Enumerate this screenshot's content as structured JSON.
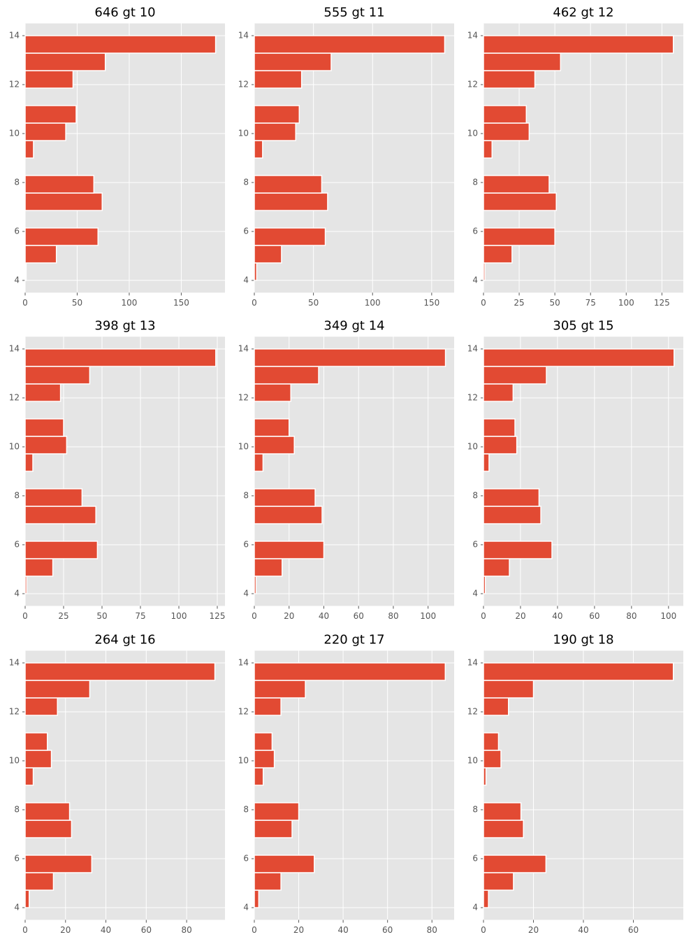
{
  "chart_data": [
    {
      "type": "histogram",
      "title": "646 gt 10",
      "orientation": "horizontal",
      "color": "#e24a33",
      "grid": true,
      "bins": [
        4,
        4.714,
        5.429,
        6.143,
        6.857,
        7.571,
        8.286,
        9,
        9.714,
        10.429,
        11.143,
        11.857,
        12.571,
        13.286,
        14
      ],
      "values": [
        1,
        30,
        70,
        0,
        74,
        66,
        0,
        8,
        39,
        49,
        0,
        46,
        77,
        183
      ],
      "xlim": [
        0,
        192
      ],
      "xticks": [
        0,
        50,
        100,
        150
      ],
      "ylim": [
        3.5,
        14.5
      ],
      "yticks": [
        4,
        6,
        8,
        10,
        12,
        14
      ]
    },
    {
      "type": "histogram",
      "title": "555 gt 11",
      "orientation": "horizontal",
      "color": "#e24a33",
      "grid": true,
      "bins": [
        4,
        4.714,
        5.429,
        6.143,
        6.857,
        7.571,
        8.286,
        9,
        9.714,
        10.429,
        11.143,
        11.857,
        12.571,
        13.286,
        14
      ],
      "values": [
        2,
        23,
        60,
        0,
        62,
        57,
        0,
        7,
        35,
        38,
        0,
        40,
        65,
        161
      ],
      "xlim": [
        0,
        169
      ],
      "xticks": [
        0,
        50,
        100,
        150
      ],
      "ylim": [
        3.5,
        14.5
      ],
      "yticks": [
        4,
        6,
        8,
        10,
        12,
        14
      ]
    },
    {
      "type": "histogram",
      "title": "462 gt 12",
      "orientation": "horizontal",
      "color": "#e24a33",
      "grid": true,
      "bins": [
        4,
        4.714,
        5.429,
        6.143,
        6.857,
        7.571,
        8.286,
        9,
        9.714,
        10.429,
        11.143,
        11.857,
        12.571,
        13.286,
        14
      ],
      "values": [
        1,
        20,
        50,
        0,
        51,
        46,
        0,
        6,
        32,
        30,
        0,
        36,
        54,
        133
      ],
      "xlim": [
        0,
        140
      ],
      "xticks": [
        0,
        25,
        50,
        75,
        100,
        125
      ],
      "ylim": [
        3.5,
        14.5
      ],
      "yticks": [
        4,
        6,
        8,
        10,
        12,
        14
      ]
    },
    {
      "type": "histogram",
      "title": "398 gt 13",
      "orientation": "horizontal",
      "color": "#e24a33",
      "grid": true,
      "bins": [
        4,
        4.714,
        5.429,
        6.143,
        6.857,
        7.571,
        8.286,
        9,
        9.714,
        10.429,
        11.143,
        11.857,
        12.571,
        13.286,
        14
      ],
      "values": [
        1,
        18,
        47,
        0,
        46,
        37,
        0,
        5,
        27,
        25,
        0,
        23,
        42,
        124
      ],
      "xlim": [
        0,
        130
      ],
      "xticks": [
        0,
        25,
        50,
        75,
        100,
        125
      ],
      "ylim": [
        3.5,
        14.5
      ],
      "yticks": [
        4,
        6,
        8,
        10,
        12,
        14
      ]
    },
    {
      "type": "histogram",
      "title": "349 gt 14",
      "orientation": "horizontal",
      "color": "#e24a33",
      "grid": true,
      "bins": [
        4,
        4.714,
        5.429,
        6.143,
        6.857,
        7.571,
        8.286,
        9,
        9.714,
        10.429,
        11.143,
        11.857,
        12.571,
        13.286,
        14
      ],
      "values": [
        1,
        16,
        40,
        0,
        39,
        35,
        0,
        5,
        23,
        20,
        0,
        21,
        37,
        110
      ],
      "xlim": [
        0,
        115
      ],
      "xticks": [
        0,
        20,
        40,
        60,
        80,
        100
      ],
      "ylim": [
        3.5,
        14.5
      ],
      "yticks": [
        4,
        6,
        8,
        10,
        12,
        14
      ]
    },
    {
      "type": "histogram",
      "title": "305 gt 15",
      "orientation": "horizontal",
      "color": "#e24a33",
      "grid": true,
      "bins": [
        4,
        4.714,
        5.429,
        6.143,
        6.857,
        7.571,
        8.286,
        9,
        9.714,
        10.429,
        11.143,
        11.857,
        12.571,
        13.286,
        14
      ],
      "values": [
        1,
        14,
        37,
        0,
        31,
        30,
        0,
        3,
        18,
        17,
        0,
        16,
        34,
        103
      ],
      "xlim": [
        0,
        108
      ],
      "xticks": [
        0,
        20,
        40,
        60,
        80,
        100
      ],
      "ylim": [
        3.5,
        14.5
      ],
      "yticks": [
        4,
        6,
        8,
        10,
        12,
        14
      ]
    },
    {
      "type": "histogram",
      "title": "264 gt 16",
      "orientation": "horizontal",
      "color": "#e24a33",
      "grid": true,
      "bins": [
        4,
        4.714,
        5.429,
        6.143,
        6.857,
        7.571,
        8.286,
        9,
        9.714,
        10.429,
        11.143,
        11.857,
        12.571,
        13.286,
        14
      ],
      "values": [
        2,
        14,
        33,
        0,
        23,
        22,
        0,
        4,
        13,
        11,
        0,
        16,
        32,
        94
      ],
      "xlim": [
        0,
        99
      ],
      "xticks": [
        0,
        20,
        40,
        60,
        80
      ],
      "ylim": [
        3.5,
        14.5
      ],
      "yticks": [
        4,
        6,
        8,
        10,
        12,
        14
      ]
    },
    {
      "type": "histogram",
      "title": "220 gt 17",
      "orientation": "horizontal",
      "color": "#e24a33",
      "grid": true,
      "bins": [
        4,
        4.714,
        5.429,
        6.143,
        6.857,
        7.571,
        8.286,
        9,
        9.714,
        10.429,
        11.143,
        11.857,
        12.571,
        13.286,
        14
      ],
      "values": [
        2,
        12,
        27,
        0,
        17,
        20,
        0,
        4,
        9,
        8,
        0,
        12,
        23,
        86
      ],
      "xlim": [
        0,
        90
      ],
      "xticks": [
        0,
        20,
        40,
        60,
        80
      ],
      "ylim": [
        3.5,
        14.5
      ],
      "yticks": [
        4,
        6,
        8,
        10,
        12,
        14
      ]
    },
    {
      "type": "histogram",
      "title": "190 gt 18",
      "orientation": "horizontal",
      "color": "#e24a33",
      "grid": true,
      "bins": [
        4,
        4.714,
        5.429,
        6.143,
        6.857,
        7.571,
        8.286,
        9,
        9.714,
        10.429,
        11.143,
        11.857,
        12.571,
        13.286,
        14
      ],
      "values": [
        2,
        12,
        25,
        0,
        16,
        15,
        0,
        1,
        7,
        6,
        0,
        10,
        20,
        76
      ],
      "xlim": [
        0,
        80
      ],
      "xticks": [
        0,
        20,
        40,
        60
      ],
      "ylim": [
        3.5,
        14.5
      ],
      "yticks": [
        4,
        6,
        8,
        10,
        12,
        14
      ]
    }
  ]
}
